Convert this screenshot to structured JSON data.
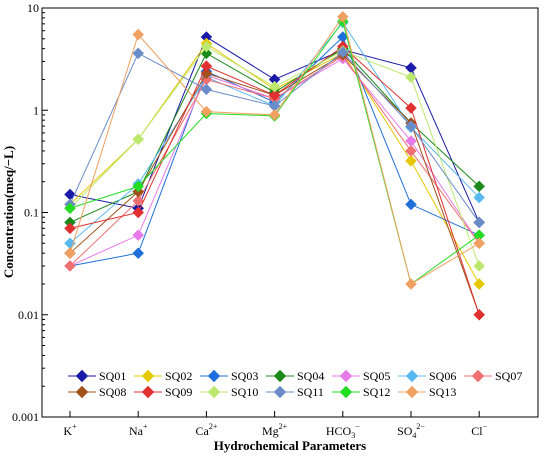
{
  "chart_data": {
    "type": "line",
    "title": "",
    "xlabel": "Hydrochemical Parameters",
    "ylabel": "Concentration(meq/−L)",
    "yscale": "log",
    "ylim": [
      0.001,
      10
    ],
    "yticks": [
      "0.001",
      "0.01",
      "0.1",
      "1",
      "10"
    ],
    "categories": [
      {
        "base": "K",
        "sub": "",
        "sup": "+"
      },
      {
        "base": "Na",
        "sub": "",
        "sup": "+"
      },
      {
        "base": "Ca",
        "sub": "",
        "sup": "2+"
      },
      {
        "base": "Mg",
        "sub": "",
        "sup": "2+"
      },
      {
        "base": "HCO",
        "sub": "3",
        "sup": "−"
      },
      {
        "base": "SO",
        "sub": "4",
        "sup": "2−"
      },
      {
        "base": "Cl",
        "sub": "",
        "sup": "−"
      }
    ],
    "marker": "diamond",
    "grid": false,
    "legend_position": "bottom-inside",
    "series": [
      {
        "name": "SQ01",
        "color": "#1a1aa8",
        "values": [
          0.15,
          0.11,
          5.2,
          2.0,
          3.9,
          2.6,
          0.08
        ]
      },
      {
        "name": "SQ02",
        "color": "#e6c800",
        "values": [
          0.12,
          0.52,
          4.5,
          1.6,
          3.6,
          0.32,
          0.02
        ]
      },
      {
        "name": "SQ03",
        "color": "#1e6fd9",
        "values": [
          0.03,
          0.04,
          2.4,
          1.2,
          5.2,
          0.12,
          0.06
        ]
      },
      {
        "name": "SQ04",
        "color": "#1a8a1a",
        "values": [
          0.08,
          0.16,
          3.6,
          1.5,
          4.0,
          0.75,
          0.18
        ]
      },
      {
        "name": "SQ05",
        "color": "#e879e8",
        "values": [
          0.03,
          0.06,
          2.2,
          1.3,
          3.2,
          0.5,
          0.05
        ]
      },
      {
        "name": "SQ06",
        "color": "#5ab8f0",
        "values": [
          0.05,
          0.19,
          2.1,
          1.1,
          7.2,
          0.68,
          0.14
        ]
      },
      {
        "name": "SQ07",
        "color": "#f07070",
        "values": [
          0.03,
          0.13,
          2.0,
          1.3,
          3.4,
          0.4,
          0.05
        ]
      },
      {
        "name": "SQ08",
        "color": "#a0501a",
        "values": [
          0.04,
          0.16,
          2.3,
          1.4,
          3.5,
          0.75,
          0.01
        ]
      },
      {
        "name": "SQ09",
        "color": "#e03030",
        "values": [
          0.07,
          0.1,
          2.7,
          1.4,
          4.2,
          1.05,
          0.01
        ]
      },
      {
        "name": "SQ10",
        "color": "#bde870",
        "values": [
          0.11,
          0.52,
          4.2,
          1.7,
          3.8,
          2.1,
          0.03
        ]
      },
      {
        "name": "SQ11",
        "color": "#6a8cc8",
        "values": [
          0.12,
          3.6,
          1.6,
          1.1,
          3.7,
          0.7,
          0.08
        ]
      },
      {
        "name": "SQ12",
        "color": "#22dd22",
        "values": [
          0.11,
          0.18,
          0.93,
          0.88,
          7.4,
          0.02,
          0.06
        ]
      },
      {
        "name": "SQ13",
        "color": "#f0a060",
        "values": [
          0.04,
          5.5,
          0.97,
          0.9,
          8.2,
          0.02,
          0.05
        ]
      }
    ]
  }
}
